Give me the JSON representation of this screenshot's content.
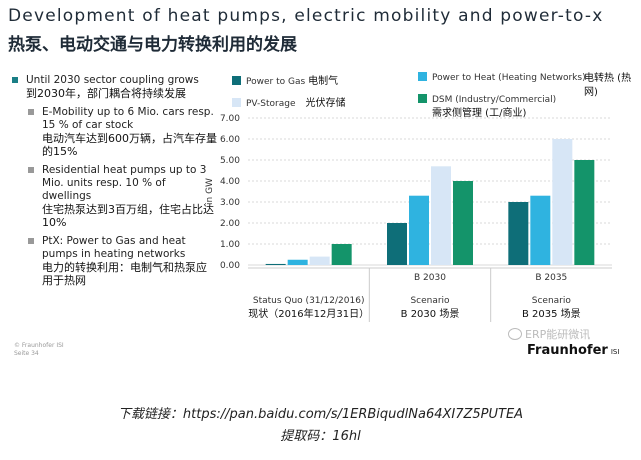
{
  "slide": {
    "title_en": "Development of heat pumps, electric mobility and power-to-x",
    "title_zh": "热泵、电动交通与电力转换利用的发展",
    "bullets": {
      "main_en": "Until 2030 sector coupling grows",
      "main_zh": "到2030年，部门耦合将持续发展",
      "items": [
        {
          "en": "E-Mobility up to 6 Mio. cars resp. 15 % of car stock",
          "zh": "电动汽车达到600万辆，占汽车存量的15%"
        },
        {
          "en": "Residential heat pumps up to 3 Mio. units resp. 10 % of dwellings",
          "zh": "住宅热泵达到3百万组，住宅占比达10%"
        },
        {
          "en": "PtX: Power to Gas and heat pumps in heating networks",
          "zh": "电力的转换利用：电制气和热泵应用于热网"
        }
      ]
    },
    "footer_small": [
      "© Fraunhofer ISI",
      "Seite 34"
    ],
    "logo": "Fraunhofer",
    "logo_sub": "ISI",
    "watermark": "ERP能研微讯"
  },
  "download": {
    "line1": "下载链接：https://pan.baidu.com/s/1ERBiqudlNa64XI7Z5PUTEA",
    "line2": "提取码：16hl"
  },
  "legend": {
    "items": [
      {
        "en": "Power to Gas",
        "zh": "电制气"
      },
      {
        "en": "Power to Heat (Heating Networks)",
        "zh": "电转热 (热网)"
      },
      {
        "en": "PV-Storage",
        "zh": "光伏存储"
      },
      {
        "en": "DSM (Industry/Commercial)",
        "zh": "需求侧管理 (工/商业)"
      }
    ]
  },
  "colors": {
    "power_to_gas": "#0e6e78",
    "power_to_heat": "#2fb3e0",
    "pv_storage": "#d7e6f6",
    "dsm": "#14946a",
    "accent": "#1a7f86"
  },
  "chart_data": {
    "type": "bar",
    "title": "",
    "ylabel": "in GW",
    "ylim": [
      0,
      7
    ],
    "yticks": [
      "0.00",
      "1.00",
      "2.00",
      "3.00",
      "4.00",
      "5.00",
      "6.00",
      "7.00"
    ],
    "grid": true,
    "categories": [
      "Status Quo",
      "B 2030",
      "B 2035"
    ],
    "group_labels": [
      {
        "top": "",
        "line1": "Status Quo (31/12/2016)",
        "line2": "现状（2016年12月31日）"
      },
      {
        "top": "B 2030",
        "line1": "Scenario",
        "line2": "B 2030 场景"
      },
      {
        "top": "B 2035",
        "line1": "Scenario",
        "line2": "B 2035 场景"
      }
    ],
    "series": [
      {
        "name": "Power to Gas",
        "values": [
          0.05,
          2.0,
          3.0
        ]
      },
      {
        "name": "Power to Heat (Heating Networks)",
        "values": [
          0.25,
          3.3,
          3.3
        ]
      },
      {
        "name": "PV-Storage",
        "values": [
          0.4,
          4.7,
          6.0
        ]
      },
      {
        "name": "DSM (Industry/Commercial)",
        "values": [
          1.0,
          4.0,
          5.0
        ]
      }
    ]
  }
}
